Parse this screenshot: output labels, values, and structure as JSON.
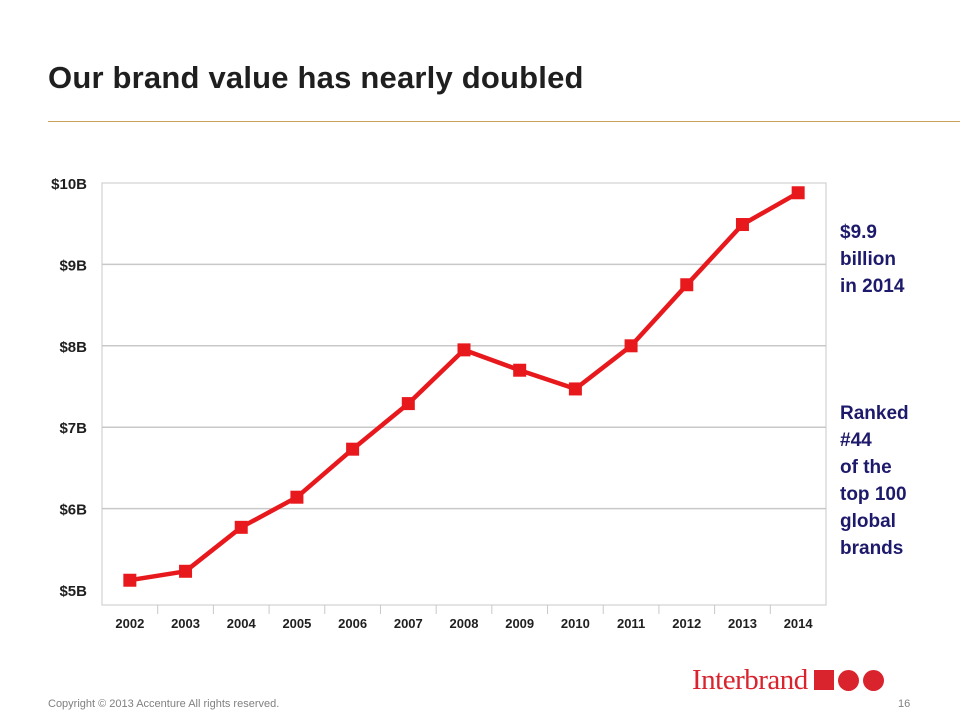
{
  "slide": {
    "title": "Our brand value has nearly doubled",
    "accent_color": "#c9a15a"
  },
  "chart_data": {
    "type": "line",
    "categories": [
      "2002",
      "2003",
      "2004",
      "2005",
      "2006",
      "2007",
      "2008",
      "2009",
      "2010",
      "2011",
      "2012",
      "2013",
      "2014"
    ],
    "series": [
      {
        "values": [
          5.12,
          5.23,
          5.77,
          6.14,
          6.73,
          7.29,
          7.95,
          7.7,
          7.47,
          8.0,
          8.75,
          9.49,
          9.88
        ]
      }
    ],
    "ylim": [
      5,
      10
    ],
    "yticks": [
      5,
      6,
      7,
      8,
      9,
      10
    ],
    "ytick_labels": [
      "$5B",
      "$6B",
      "$7B",
      "$8B",
      "$9B",
      "$10B"
    ],
    "grid": true,
    "line_color": "#e8191d",
    "marker": "square"
  },
  "callouts": {
    "value": "$9.9\nbillion\nin 2014",
    "rank": "Ranked\n#44\nof the\ntop 100\nglobal\nbrands"
  },
  "logo": {
    "text": "Interbrand",
    "color": "#d9232d"
  },
  "footer": {
    "copyright": "Copyright © 2013 Accenture All rights reserved.",
    "page": "16"
  }
}
